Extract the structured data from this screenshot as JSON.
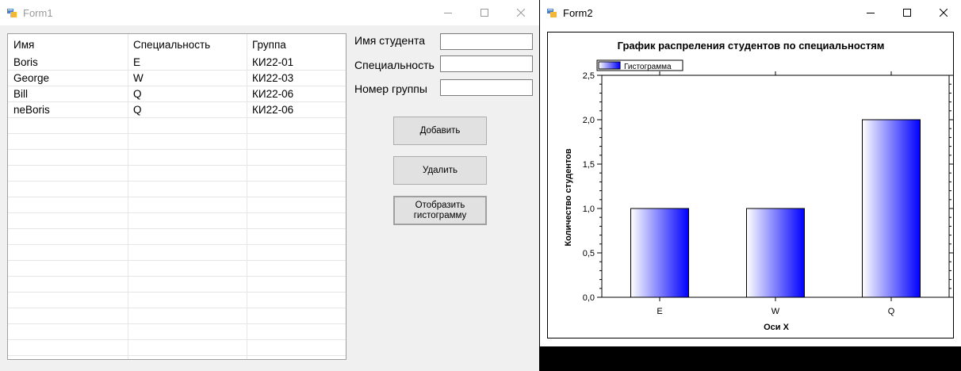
{
  "form1": {
    "title": "Form1",
    "grid": {
      "columns": [
        "Имя",
        "Специальность",
        "Группа"
      ],
      "rows": [
        [
          "Boris",
          "E",
          "КИ22-01"
        ],
        [
          "George",
          "W",
          "КИ22-03"
        ],
        [
          "Bill",
          "Q",
          "КИ22-06"
        ],
        [
          "neBoris",
          "Q",
          "КИ22-06"
        ]
      ]
    },
    "fields": {
      "name_label": "Имя студента",
      "name_value": "",
      "spec_label": "Специальность",
      "spec_value": "",
      "group_label": "Номер группы",
      "group_value": ""
    },
    "buttons": {
      "add": "Добавить",
      "delete": "Удалить",
      "show_histogram": "Отобразить гистограмму"
    }
  },
  "form2": {
    "title": "Form2"
  },
  "icons": {
    "app": "winforms-app-icon",
    "minimize": "minimize-icon",
    "maximize": "maximize-icon",
    "close": "close-icon"
  },
  "colors": {
    "bar_fill_start": "#ffffff",
    "bar_fill_end": "#0000ff",
    "grid_line": "#e6e6e6",
    "form_bg": "#f0f0f0"
  },
  "chart_data": {
    "type": "bar",
    "title": "График распреления студентов по специальностям",
    "xlabel": "Оси X",
    "ylabel": "Количество студентов",
    "categories": [
      "E",
      "W",
      "Q"
    ],
    "series": [
      {
        "name": "Гистограмма",
        "values": [
          1,
          1,
          2
        ]
      }
    ],
    "ylim": [
      0,
      2.5
    ],
    "yticks": [
      "0,0",
      "0,5",
      "1,0",
      "1,5",
      "2,0",
      "2,5"
    ],
    "legend": "top-left",
    "grid": false
  }
}
